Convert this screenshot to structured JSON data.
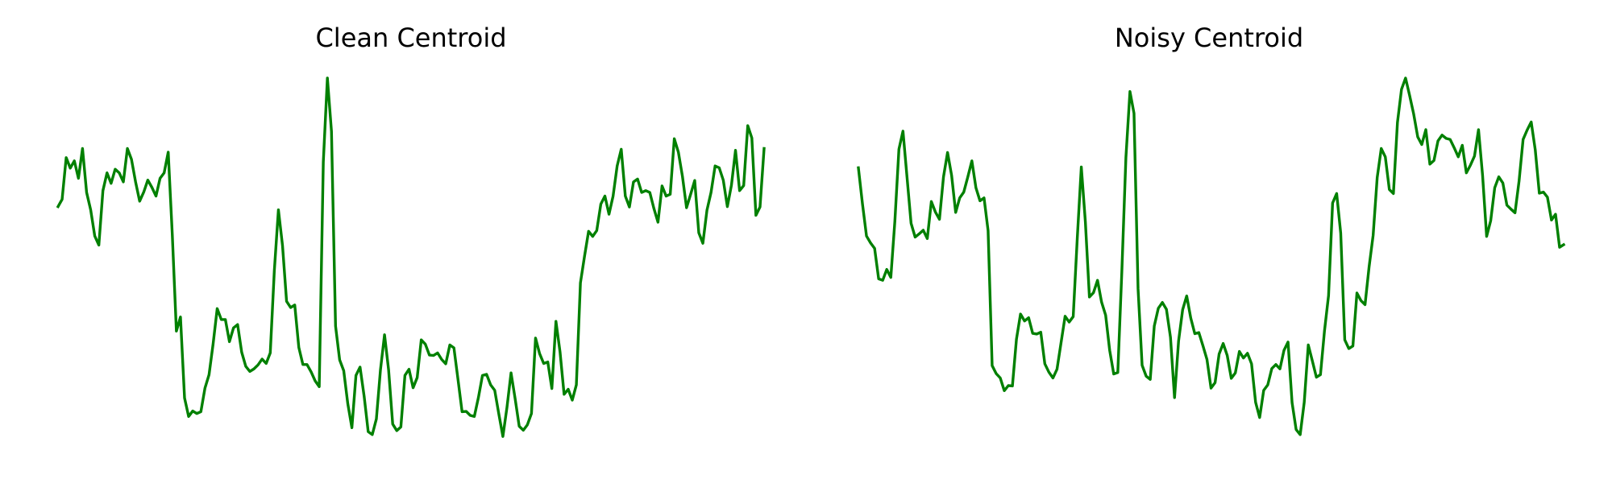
{
  "chart_data": [
    {
      "type": "line",
      "title": "Clean Centroid",
      "xlabel": "",
      "ylabel": "",
      "axes_visible": false,
      "grid": false,
      "color": "#008000",
      "ylim": [
        0,
        1
      ],
      "series": [
        {
          "values": [
            0.646,
            0.666,
            0.781,
            0.752,
            0.772,
            0.724,
            0.806,
            0.685,
            0.637,
            0.565,
            0.54,
            0.69,
            0.739,
            0.71,
            0.749,
            0.739,
            0.714,
            0.806,
            0.776,
            0.714,
            0.661,
            0.686,
            0.719,
            0.699,
            0.675,
            0.724,
            0.739,
            0.796,
            0.568,
            0.303,
            0.342,
            0.119,
            0.068,
            0.083,
            0.076,
            0.081,
            0.146,
            0.183,
            0.268,
            0.365,
            0.335,
            0.335,
            0.274,
            0.312,
            0.321,
            0.245,
            0.206,
            0.192,
            0.199,
            0.21,
            0.226,
            0.214,
            0.243,
            0.47,
            0.637,
            0.539,
            0.385,
            0.368,
            0.375,
            0.258,
            0.211,
            0.211,
            0.191,
            0.166,
            0.15,
            0.769,
            1.0,
            0.853,
            0.317,
            0.224,
            0.194,
            0.103,
            0.037,
            0.181,
            0.204,
            0.124,
            0.026,
            0.018,
            0.061,
            0.196,
            0.293,
            0.196,
            0.047,
            0.029,
            0.039,
            0.181,
            0.198,
            0.147,
            0.175,
            0.279,
            0.267,
            0.237,
            0.236,
            0.243,
            0.225,
            0.213,
            0.265,
            0.257,
            0.17,
            0.081,
            0.082,
            0.071,
            0.068,
            0.12,
            0.181,
            0.184,
            0.155,
            0.14,
            0.075,
            0.013,
            0.093,
            0.188,
            0.117,
            0.041,
            0.03,
            0.045,
            0.076,
            0.284,
            0.241,
            0.214,
            0.218,
            0.145,
            0.33,
            0.246,
            0.129,
            0.143,
            0.113,
            0.155,
            0.436,
            0.509,
            0.578,
            0.564,
            0.58,
            0.653,
            0.675,
            0.625,
            0.675,
            0.758,
            0.804,
            0.675,
            0.645,
            0.714,
            0.722,
            0.685,
            0.69,
            0.685,
            0.641,
            0.603,
            0.703,
            0.675,
            0.68,
            0.833,
            0.796,
            0.729,
            0.643,
            0.68,
            0.718,
            0.574,
            0.545,
            0.636,
            0.685,
            0.758,
            0.753,
            0.719,
            0.646,
            0.705,
            0.801,
            0.69,
            0.704,
            0.869,
            0.835,
            0.622,
            0.645,
            0.806
          ]
        }
      ]
    },
    {
      "type": "line",
      "title": "Noisy Centroid",
      "xlabel": "",
      "ylabel": "",
      "axes_visible": false,
      "grid": false,
      "color": "#008000",
      "ylim": [
        0,
        1
      ],
      "series": [
        {
          "values": [
            0.753,
            0.654,
            0.565,
            0.546,
            0.531,
            0.447,
            0.443,
            0.473,
            0.451,
            0.606,
            0.804,
            0.854,
            0.727,
            0.6,
            0.562,
            0.571,
            0.581,
            0.558,
            0.66,
            0.631,
            0.611,
            0.728,
            0.795,
            0.732,
            0.63,
            0.67,
            0.686,
            0.728,
            0.772,
            0.698,
            0.662,
            0.67,
            0.58,
            0.208,
            0.186,
            0.174,
            0.139,
            0.153,
            0.152,
            0.281,
            0.35,
            0.331,
            0.34,
            0.297,
            0.295,
            0.3,
            0.213,
            0.19,
            0.174,
            0.198,
            0.271,
            0.344,
            0.328,
            0.343,
            0.558,
            0.755,
            0.604,
            0.397,
            0.409,
            0.443,
            0.383,
            0.347,
            0.25,
            0.185,
            0.189,
            0.468,
            0.781,
            0.963,
            0.903,
            0.42,
            0.209,
            0.179,
            0.17,
            0.317,
            0.366,
            0.382,
            0.363,
            0.286,
            0.12,
            0.276,
            0.362,
            0.4,
            0.339,
            0.296,
            0.299,
            0.263,
            0.225,
            0.146,
            0.161,
            0.24,
            0.269,
            0.236,
            0.173,
            0.188,
            0.247,
            0.229,
            0.242,
            0.213,
            0.107,
            0.065,
            0.14,
            0.155,
            0.2,
            0.211,
            0.199,
            0.25,
            0.273,
            0.106,
            0.032,
            0.018,
            0.107,
            0.265,
            0.221,
            0.176,
            0.183,
            0.304,
            0.401,
            0.656,
            0.682,
            0.573,
            0.279,
            0.255,
            0.262,
            0.408,
            0.387,
            0.376,
            0.48,
            0.567,
            0.726,
            0.806,
            0.783,
            0.693,
            0.682,
            0.878,
            0.969,
            1.0,
            0.952,
            0.901,
            0.838,
            0.817,
            0.858,
            0.763,
            0.773,
            0.827,
            0.843,
            0.834,
            0.831,
            0.808,
            0.783,
            0.815,
            0.739,
            0.76,
            0.785,
            0.858,
            0.732,
            0.564,
            0.607,
            0.698,
            0.728,
            0.711,
            0.65,
            0.639,
            0.629,
            0.716,
            0.831,
            0.857,
            0.879,
            0.802,
            0.683,
            0.686,
            0.672,
            0.609,
            0.625,
            0.534,
            0.541
          ]
        }
      ]
    }
  ]
}
